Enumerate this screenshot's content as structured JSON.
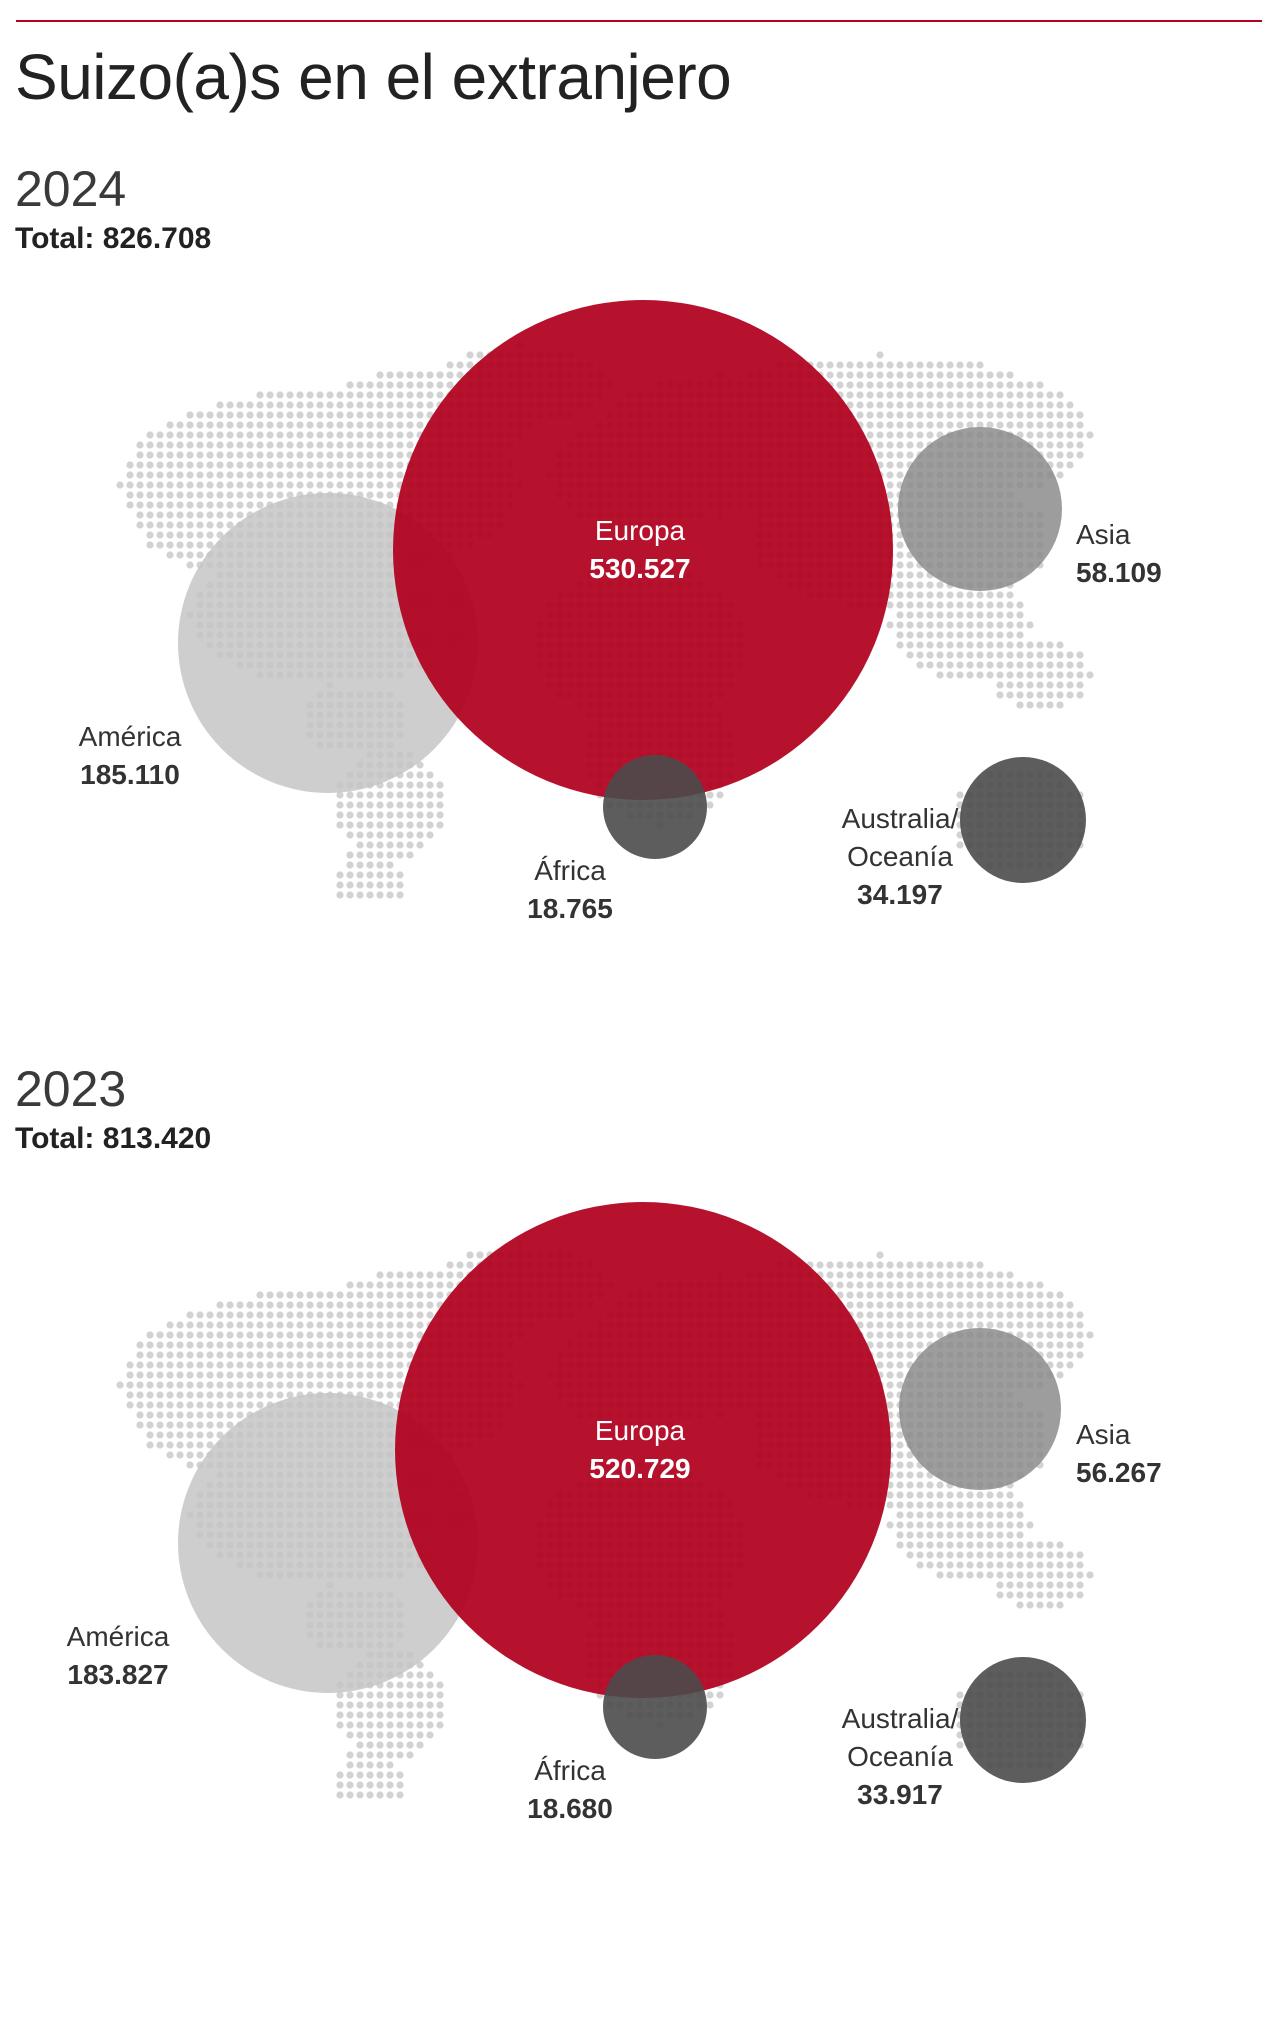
{
  "title": "Suizo(a)s en el extranjero",
  "colors": {
    "europe": "#b0001e",
    "america": "#c6c6c6",
    "asia": "#8c8c8c",
    "africa": "#4b4b4b",
    "oceania": "#4b4b4b",
    "dots": "#d2d2d2",
    "rule": "#b5001f"
  },
  "panels": [
    {
      "year": "2024",
      "total_label": "Total:",
      "total": "826.708",
      "regions": {
        "europa": {
          "name": "Europa",
          "value": "530.527"
        },
        "america": {
          "name": "América",
          "value": "185.110"
        },
        "asia": {
          "name": "Asia",
          "value": "58.109"
        },
        "africa": {
          "name": "África",
          "value": "18.765"
        },
        "oceania": {
          "name_1": "Australia/",
          "name_2": "Oceanía",
          "value": "34.197"
        }
      }
    },
    {
      "year": "2023",
      "total_label": "Total:",
      "total": "813.420",
      "regions": {
        "europa": {
          "name": "Europa",
          "value": "520.729"
        },
        "america": {
          "name": "América",
          "value": "183.827"
        },
        "asia": {
          "name": "Asia",
          "value": "56.267"
        },
        "africa": {
          "name": "África",
          "value": "18.680"
        },
        "oceania": {
          "name_1": "Australia/",
          "name_2": "Oceanía",
          "value": "33.917"
        }
      }
    }
  ]
}
